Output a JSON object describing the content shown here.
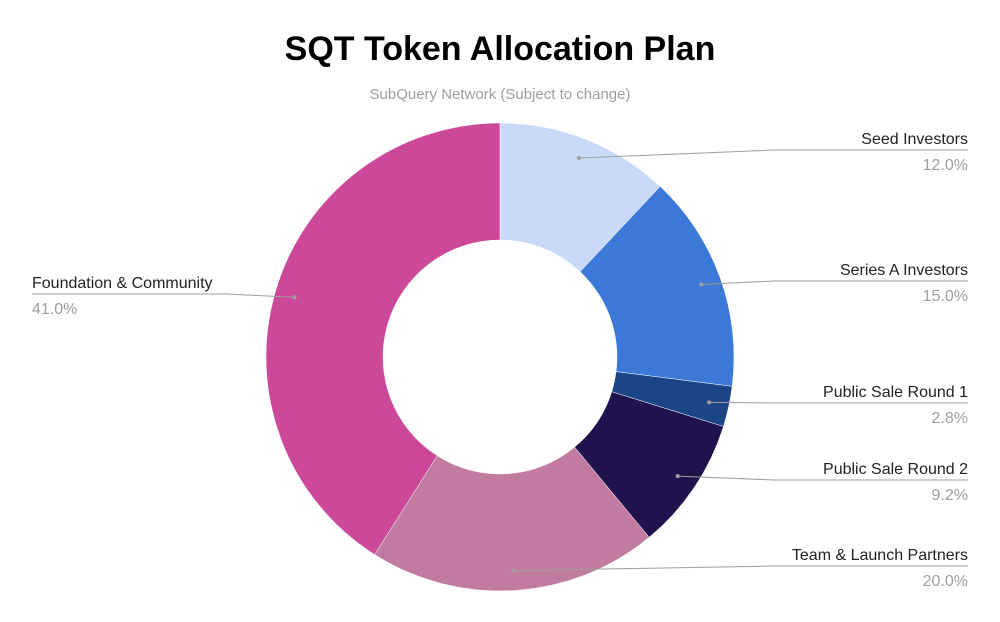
{
  "chart_data": {
    "type": "pie",
    "donut": true,
    "title": "SQT Token Allocation Plan",
    "subtitle": "SubQuery Network (Subject to change)",
    "slices": [
      {
        "label": "Seed Investors",
        "value": 12.0,
        "display": "12.0%",
        "color": "#c9daf8"
      },
      {
        "label": "Series A Investors",
        "value": 15.0,
        "display": "15.0%",
        "color": "#3c78d8"
      },
      {
        "label": "Public Sale Round 1",
        "value": 2.8,
        "display": "2.8%",
        "color": "#1c4587"
      },
      {
        "label": "Public Sale Round 2",
        "value": 9.2,
        "display": "9.2%",
        "color": "#20124d"
      },
      {
        "label": "Team & Launch Partners",
        "value": 20.0,
        "display": "20.0%",
        "color": "#c27ba0"
      },
      {
        "label": "Foundation & Community",
        "value": 41.0,
        "display": "41.0%",
        "color": "#cc4899"
      }
    ]
  }
}
